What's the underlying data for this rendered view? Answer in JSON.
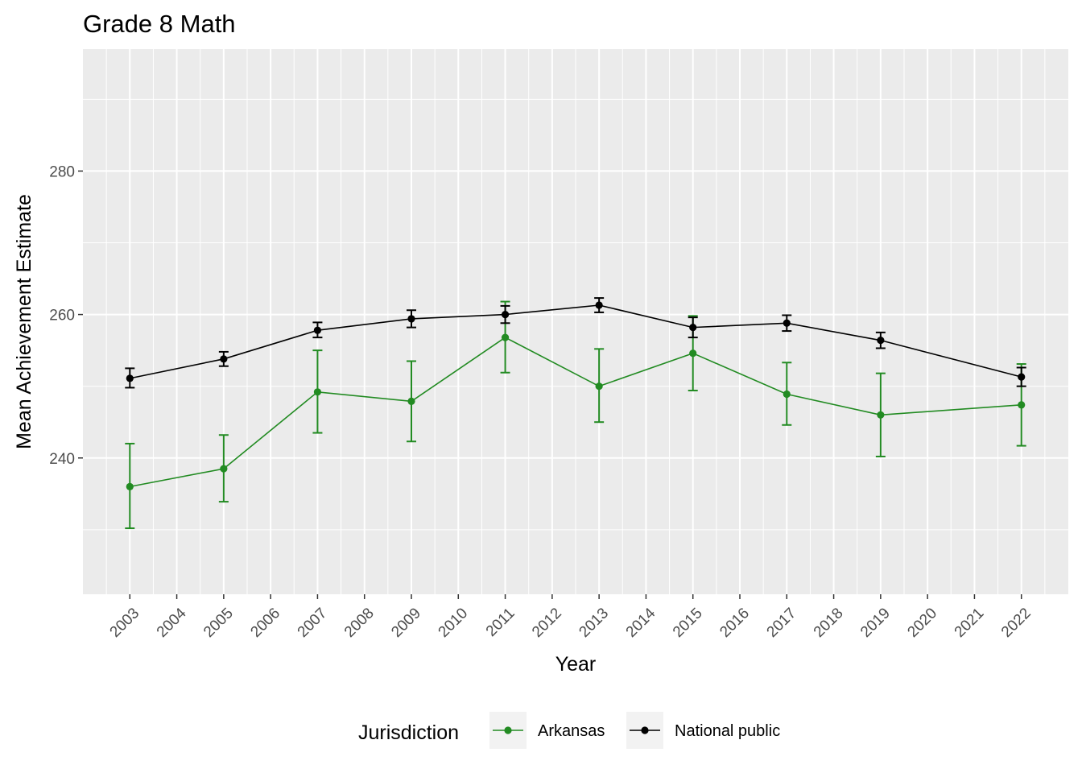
{
  "chart_data": {
    "type": "line",
    "title": "Grade 8 Math",
    "xlabel": "Year",
    "ylabel": "Mean Achievement Estimate",
    "x_ticks": [
      "2003",
      "2004",
      "2005",
      "2006",
      "2007",
      "2008",
      "2009",
      "2010",
      "2011",
      "2012",
      "2013",
      "2014",
      "2015",
      "2016",
      "2017",
      "2018",
      "2019",
      "2020",
      "2021",
      "2022"
    ],
    "y_ticks": [
      240,
      260,
      280
    ],
    "xlim": [
      2002,
      2023
    ],
    "ylim": [
      221,
      297
    ],
    "grid": true,
    "legend": {
      "title": "Jurisdiction",
      "position": "bottom"
    },
    "series": [
      {
        "name": "Arkansas",
        "color": "#228b22",
        "x": [
          2003,
          2005,
          2007,
          2009,
          2011,
          2013,
          2015,
          2017,
          2019,
          2022
        ],
        "y": [
          236.0,
          238.5,
          249.2,
          247.9,
          256.8,
          250.0,
          254.6,
          248.9,
          246.0,
          247.4
        ],
        "error_low": [
          230.2,
          233.9,
          243.5,
          242.3,
          251.9,
          245.0,
          249.4,
          244.6,
          240.2,
          241.7
        ],
        "error_high": [
          242.0,
          243.2,
          255.0,
          253.5,
          261.8,
          255.2,
          259.8,
          253.3,
          251.8,
          253.1
        ]
      },
      {
        "name": "National public",
        "color": "#000000",
        "x": [
          2003,
          2005,
          2007,
          2009,
          2011,
          2013,
          2015,
          2017,
          2019,
          2022
        ],
        "y": [
          251.1,
          253.8,
          257.8,
          259.4,
          260.0,
          261.3,
          258.2,
          258.8,
          256.4,
          251.3
        ],
        "error_low": [
          249.8,
          252.8,
          256.8,
          258.2,
          258.8,
          260.3,
          256.8,
          257.7,
          255.3,
          250.0
        ],
        "error_high": [
          252.5,
          254.8,
          258.9,
          260.6,
          261.2,
          262.3,
          259.6,
          259.9,
          257.5,
          252.6
        ]
      }
    ]
  }
}
